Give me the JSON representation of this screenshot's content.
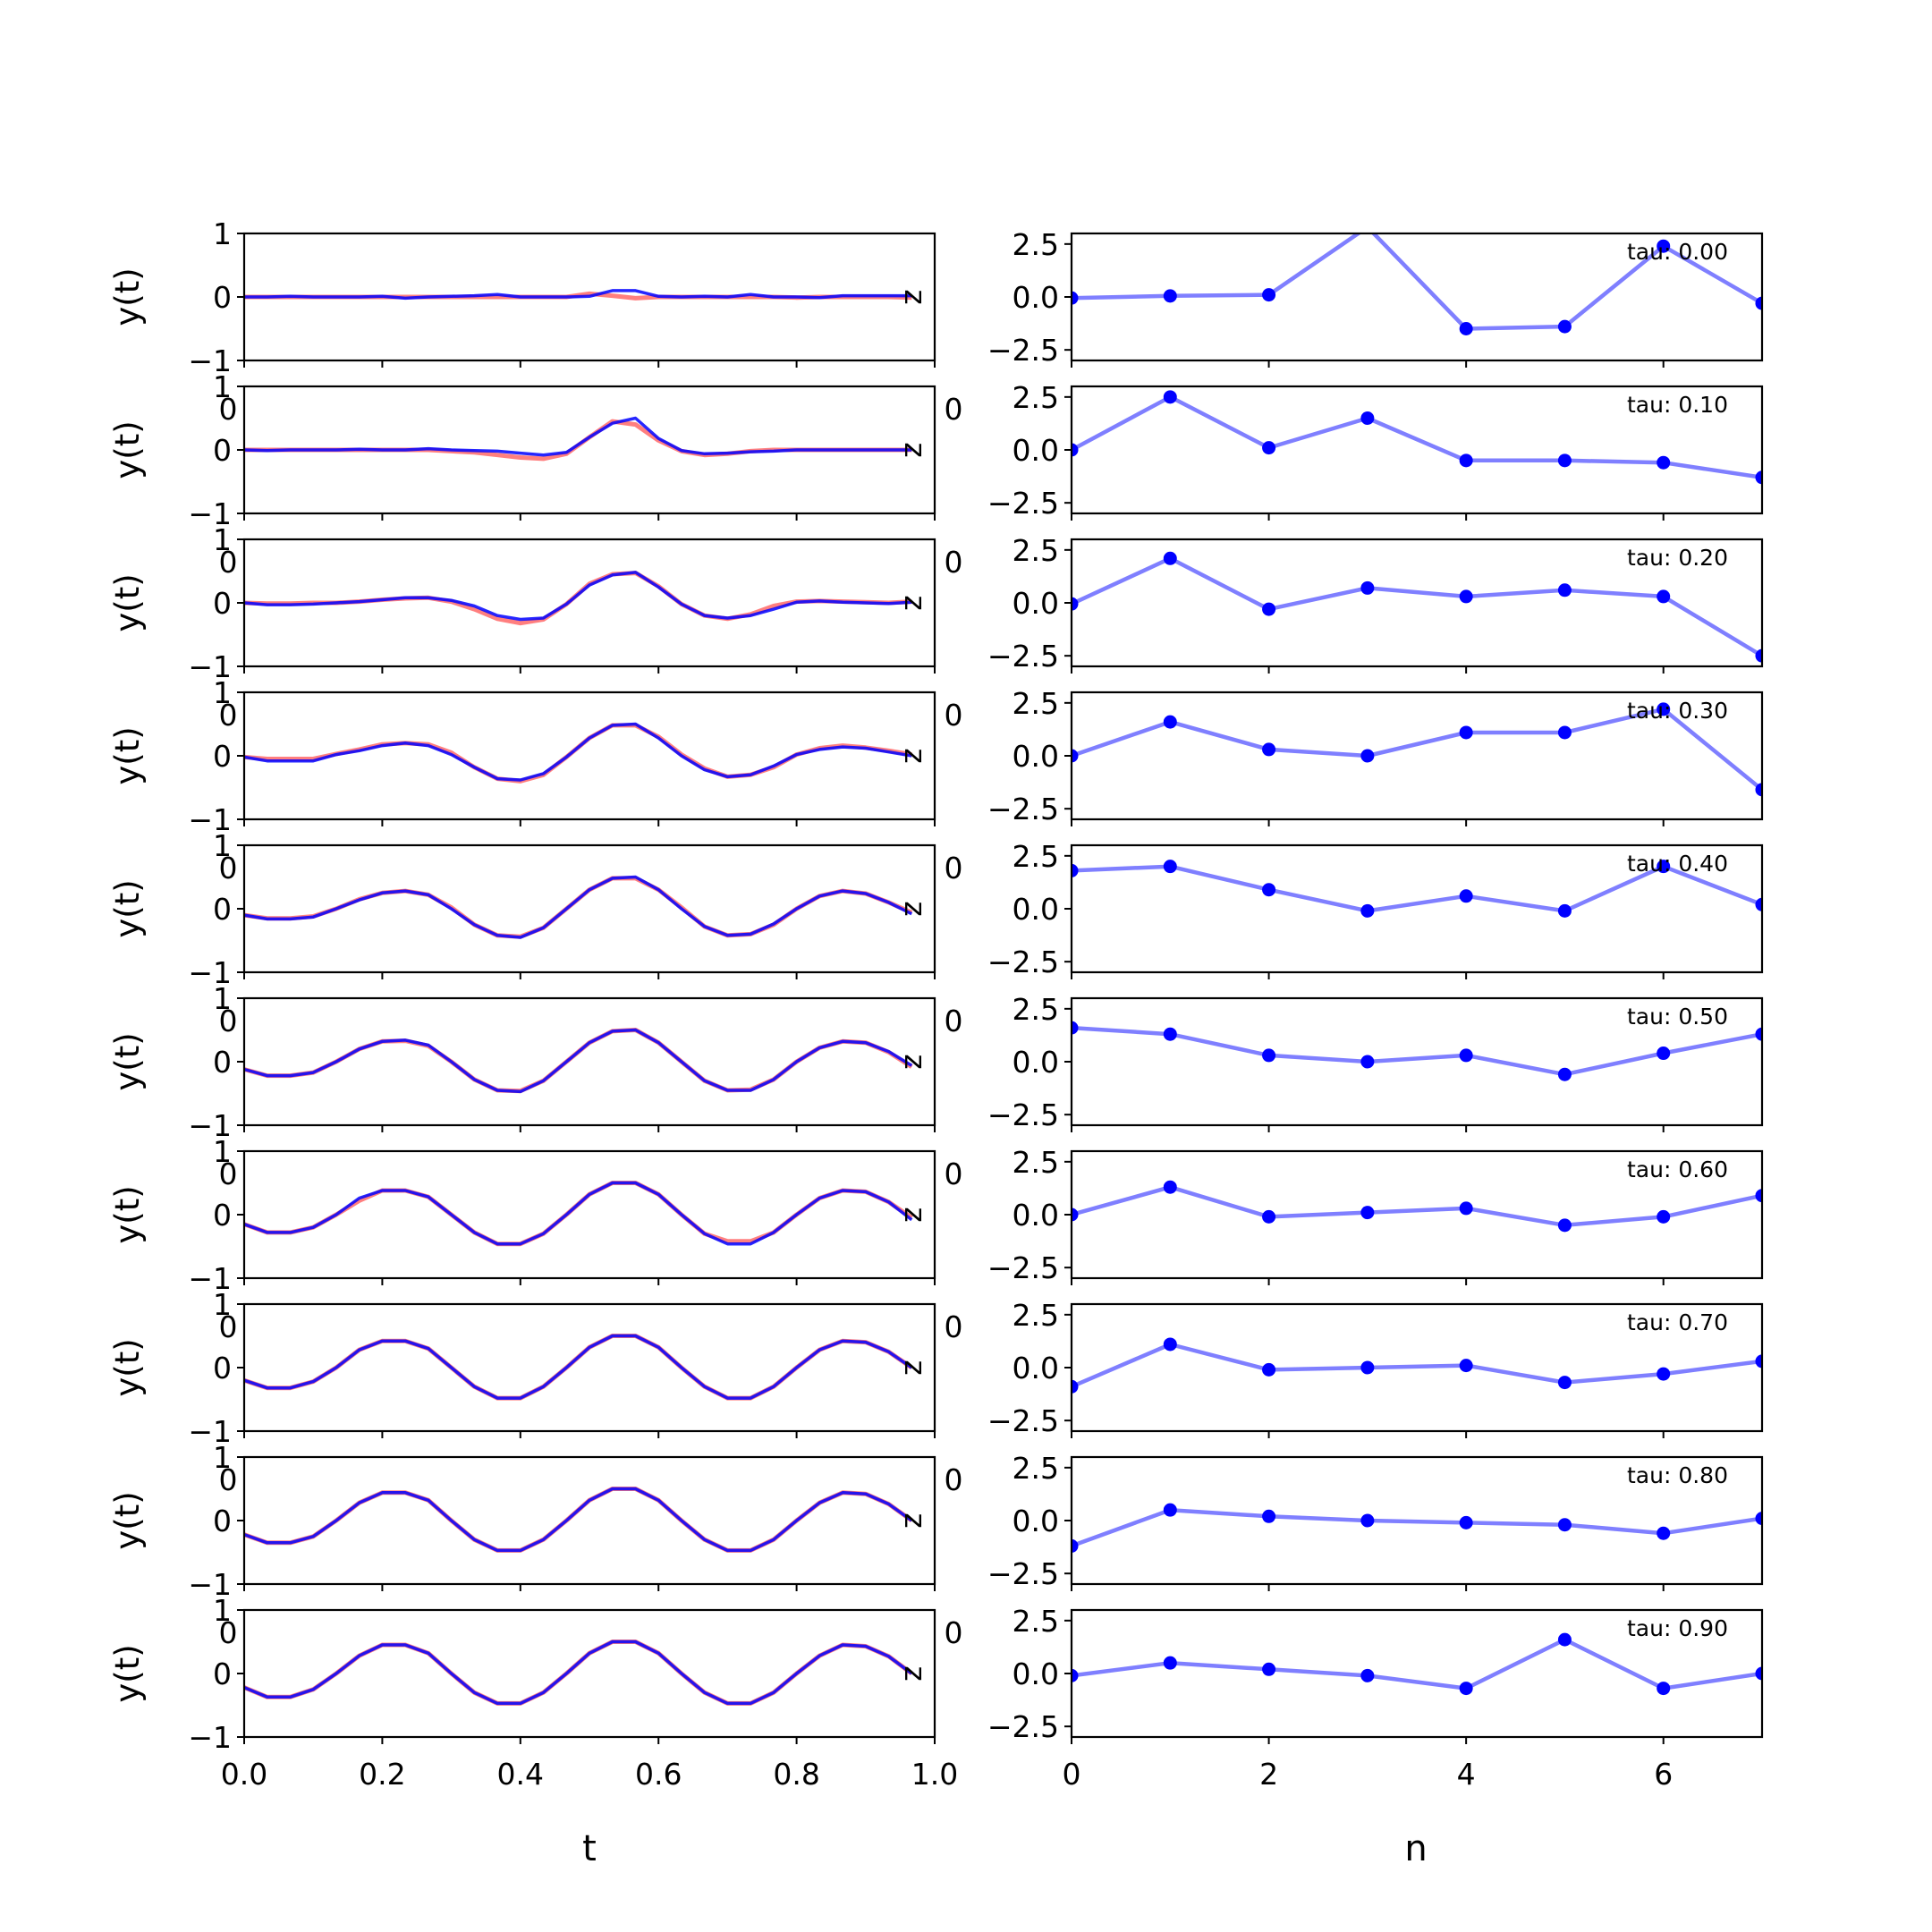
{
  "figure": {
    "left_xlabel": "t",
    "right_xlabel": "n",
    "left_ylabel": "y(t)"
  },
  "colors": {
    "reference_line": "#ff0000",
    "reconstruction_line": "#0000ff",
    "coefficient_line": "#0000ff",
    "coefficient_marker": "#0000ff",
    "axes": "#000000"
  },
  "chart_data": [
    {
      "type": "line",
      "panel": "left",
      "description_source": "stacked y(t) panels",
      "x": [
        0.0,
        0.0333,
        0.0667,
        0.1,
        0.1333,
        0.1667,
        0.2,
        0.2333,
        0.2667,
        0.3,
        0.3333,
        0.3667,
        0.4,
        0.4333,
        0.4667,
        0.5,
        0.5333,
        0.5667,
        0.6,
        0.6333,
        0.6667,
        0.7,
        0.7333,
        0.7667,
        0.8,
        0.8333,
        0.8667,
        0.9,
        0.9333,
        0.9667
      ],
      "xlim": [
        0.0,
        1.0
      ],
      "ylim": [
        -1,
        1
      ],
      "xticks": [
        "0.0",
        "0.2",
        "0.4",
        "0.6",
        "0.8",
        "1.0"
      ],
      "yticks": [
        "1",
        "0",
        "−1"
      ],
      "xlabel": "t",
      "ylabel": "y(t)",
      "stray_labels": [
        "0",
        "z"
      ],
      "panels": [
        {
          "tau": "0.00",
          "red": [
            0.0,
            0.0,
            0.0,
            0.0,
            0.0,
            0.0,
            0.0,
            0.0,
            0.0,
            0.0,
            0.0,
            0.0,
            0.0,
            0.0,
            0.0,
            0.05,
            0.02,
            -0.02,
            0.0,
            0.0,
            0.0,
            0.0,
            0.0,
            0.0,
            -0.01,
            0.0,
            0.0,
            0.0,
            0.0,
            -0.01
          ],
          "blue": [
            0.0,
            0.0,
            0.01,
            0.0,
            0.0,
            0.0,
            0.01,
            -0.02,
            0.0,
            0.01,
            0.02,
            0.04,
            0.0,
            0.0,
            0.0,
            0.01,
            0.1,
            0.1,
            0.01,
            0.0,
            0.01,
            0.0,
            0.04,
            0.0,
            0.0,
            -0.01,
            0.02,
            0.02,
            0.02,
            0.02
          ]
        },
        {
          "tau": "0.10",
          "red": [
            0.0,
            0.0,
            0.0,
            0.0,
            0.0,
            0.0,
            0.0,
            0.0,
            0.0,
            -0.02,
            -0.04,
            -0.08,
            -0.12,
            -0.14,
            -0.06,
            0.2,
            0.45,
            0.4,
            0.15,
            -0.02,
            -0.08,
            -0.06,
            -0.02,
            0.0,
            0.0,
            0.0,
            0.0,
            0.0,
            0.0,
            0.0
          ],
          "blue": [
            0.0,
            -0.01,
            0.0,
            0.0,
            0.0,
            0.01,
            0.0,
            0.0,
            0.02,
            0.0,
            -0.01,
            -0.02,
            -0.05,
            -0.08,
            -0.04,
            0.2,
            0.42,
            0.5,
            0.18,
            -0.01,
            -0.06,
            -0.05,
            -0.03,
            -0.02,
            0.0,
            0.0,
            0.0,
            0.0,
            0.0,
            0.0
          ]
        },
        {
          "tau": "0.20",
          "red": [
            0.0,
            -0.01,
            -0.01,
            0.0,
            0.0,
            0.02,
            0.05,
            0.07,
            0.08,
            0.02,
            -0.1,
            -0.25,
            -0.32,
            -0.26,
            -0.02,
            0.3,
            0.45,
            0.47,
            0.26,
            -0.02,
            -0.2,
            -0.25,
            -0.18,
            -0.05,
            0.02,
            0.03,
            0.02,
            0.01,
            0.0,
            0.02
          ],
          "blue": [
            0.0,
            -0.03,
            -0.03,
            -0.02,
            0.0,
            0.02,
            0.05,
            0.08,
            0.08,
            0.04,
            -0.05,
            -0.2,
            -0.26,
            -0.24,
            -0.02,
            0.28,
            0.44,
            0.48,
            0.25,
            -0.02,
            -0.2,
            -0.24,
            -0.2,
            -0.1,
            0.01,
            0.03,
            0.01,
            0.0,
            -0.01,
            0.01
          ]
        },
        {
          "tau": "0.30",
          "red": [
            -0.02,
            -0.05,
            -0.05,
            -0.05,
            0.03,
            0.1,
            0.18,
            0.2,
            0.18,
            0.05,
            -0.18,
            -0.36,
            -0.4,
            -0.3,
            -0.02,
            0.28,
            0.48,
            0.48,
            0.3,
            0.02,
            -0.2,
            -0.33,
            -0.3,
            -0.18,
            0.02,
            0.12,
            0.16,
            0.13,
            0.08,
            0.02
          ],
          "blue": [
            -0.02,
            -0.08,
            -0.08,
            -0.08,
            0.02,
            0.08,
            0.16,
            0.2,
            0.16,
            0.02,
            -0.18,
            -0.36,
            -0.38,
            -0.28,
            -0.02,
            0.28,
            0.48,
            0.5,
            0.28,
            0.0,
            -0.22,
            -0.33,
            -0.3,
            -0.16,
            0.02,
            0.1,
            0.14,
            0.12,
            0.06,
            0.0
          ]
        },
        {
          "tau": "0.40",
          "red": [
            -0.1,
            -0.15,
            -0.15,
            -0.12,
            0.0,
            0.15,
            0.25,
            0.28,
            0.22,
            0.02,
            -0.25,
            -0.42,
            -0.44,
            -0.3,
            0.0,
            0.3,
            0.48,
            0.48,
            0.3,
            0.02,
            -0.28,
            -0.42,
            -0.4,
            -0.25,
            0.0,
            0.2,
            0.28,
            0.24,
            0.1,
            -0.06
          ],
          "blue": [
            -0.1,
            -0.16,
            -0.16,
            -0.13,
            0.0,
            0.14,
            0.25,
            0.28,
            0.22,
            0.0,
            -0.25,
            -0.42,
            -0.45,
            -0.3,
            0.0,
            0.3,
            0.48,
            0.5,
            0.3,
            0.0,
            -0.28,
            -0.42,
            -0.4,
            -0.24,
            0.0,
            0.2,
            0.28,
            0.24,
            0.1,
            -0.08
          ]
        },
        {
          "tau": "0.50",
          "red": [
            -0.12,
            -0.22,
            -0.22,
            -0.17,
            0.0,
            0.2,
            0.32,
            0.33,
            0.25,
            0.0,
            -0.28,
            -0.45,
            -0.46,
            -0.3,
            0.0,
            0.3,
            0.48,
            0.5,
            0.3,
            0.0,
            -0.3,
            -0.45,
            -0.44,
            -0.28,
            0.0,
            0.22,
            0.32,
            0.3,
            0.15,
            -0.08
          ],
          "blue": [
            -0.12,
            -0.22,
            -0.22,
            -0.17,
            0.0,
            0.2,
            0.32,
            0.34,
            0.26,
            0.0,
            -0.28,
            -0.45,
            -0.47,
            -0.3,
            0.0,
            0.3,
            0.48,
            0.5,
            0.3,
            0.0,
            -0.3,
            -0.45,
            -0.45,
            -0.28,
            0.0,
            0.22,
            0.32,
            0.3,
            0.16,
            -0.06
          ]
        },
        {
          "tau": "0.60",
          "red": [
            -0.15,
            -0.28,
            -0.28,
            -0.2,
            0.0,
            0.22,
            0.38,
            0.38,
            0.28,
            0.0,
            -0.28,
            -0.46,
            -0.46,
            -0.3,
            0.0,
            0.32,
            0.5,
            0.5,
            0.32,
            0.0,
            -0.3,
            -0.42,
            -0.42,
            -0.28,
            0.0,
            0.26,
            0.38,
            0.36,
            0.2,
            -0.05
          ],
          "blue": [
            -0.15,
            -0.28,
            -0.28,
            -0.2,
            0.0,
            0.26,
            0.38,
            0.38,
            0.28,
            0.0,
            -0.28,
            -0.46,
            -0.46,
            -0.3,
            0.0,
            0.32,
            0.5,
            0.5,
            0.32,
            0.0,
            -0.3,
            -0.46,
            -0.46,
            -0.28,
            0.0,
            0.26,
            0.38,
            0.36,
            0.2,
            -0.08
          ]
        },
        {
          "tau": "0.70",
          "red": [
            -0.2,
            -0.32,
            -0.32,
            -0.22,
            0.0,
            0.28,
            0.42,
            0.42,
            0.3,
            0.0,
            -0.3,
            -0.48,
            -0.48,
            -0.3,
            0.0,
            0.32,
            0.5,
            0.5,
            0.32,
            0.0,
            -0.3,
            -0.48,
            -0.48,
            -0.3,
            0.0,
            0.28,
            0.42,
            0.4,
            0.25,
            0.0
          ],
          "blue": [
            -0.2,
            -0.32,
            -0.32,
            -0.22,
            0.0,
            0.28,
            0.42,
            0.42,
            0.3,
            0.0,
            -0.3,
            -0.48,
            -0.48,
            -0.3,
            0.0,
            0.32,
            0.5,
            0.5,
            0.32,
            0.0,
            -0.3,
            -0.48,
            -0.48,
            -0.3,
            0.0,
            0.28,
            0.42,
            0.4,
            0.25,
            0.0
          ]
        },
        {
          "tau": "0.80",
          "red": [
            -0.22,
            -0.35,
            -0.35,
            -0.25,
            0.0,
            0.28,
            0.44,
            0.44,
            0.32,
            0.0,
            -0.3,
            -0.47,
            -0.47,
            -0.3,
            0.0,
            0.32,
            0.5,
            0.5,
            0.32,
            0.0,
            -0.3,
            -0.47,
            -0.47,
            -0.3,
            0.0,
            0.28,
            0.44,
            0.42,
            0.26,
            0.0
          ],
          "blue": [
            -0.22,
            -0.35,
            -0.35,
            -0.25,
            0.0,
            0.28,
            0.44,
            0.44,
            0.32,
            0.0,
            -0.3,
            -0.47,
            -0.47,
            -0.3,
            0.0,
            0.32,
            0.5,
            0.5,
            0.32,
            0.0,
            -0.3,
            -0.47,
            -0.47,
            -0.3,
            0.0,
            0.28,
            0.44,
            0.42,
            0.26,
            0.0
          ]
        },
        {
          "tau": "0.90",
          "red": [
            -0.22,
            -0.37,
            -0.37,
            -0.25,
            0.0,
            0.28,
            0.45,
            0.45,
            0.32,
            0.0,
            -0.3,
            -0.47,
            -0.47,
            -0.3,
            0.0,
            0.32,
            0.5,
            0.5,
            0.32,
            0.0,
            -0.3,
            -0.47,
            -0.47,
            -0.3,
            0.0,
            0.28,
            0.45,
            0.43,
            0.27,
            0.0
          ],
          "blue": [
            -0.22,
            -0.37,
            -0.37,
            -0.25,
            0.0,
            0.28,
            0.45,
            0.45,
            0.32,
            0.0,
            -0.3,
            -0.47,
            -0.47,
            -0.3,
            0.0,
            0.32,
            0.5,
            0.5,
            0.32,
            0.0,
            -0.3,
            -0.47,
            -0.47,
            -0.3,
            0.0,
            0.28,
            0.45,
            0.43,
            0.27,
            0.0
          ]
        }
      ]
    },
    {
      "type": "line",
      "panel": "right",
      "x": [
        0,
        1,
        2,
        3,
        4,
        5,
        6,
        7
      ],
      "xlim": [
        0,
        7
      ],
      "ylim": [
        -3.0,
        3.0
      ],
      "xticks": [
        "0",
        "2",
        "4",
        "6"
      ],
      "yticks": [
        "2.5",
        "0.0",
        "−2.5"
      ],
      "xlabel": "n",
      "stray_labels": [
        "0",
        "0",
        "0"
      ],
      "panels": [
        {
          "label": "tau: 0.00",
          "values": [
            -0.05,
            0.05,
            0.1,
            3.3,
            -1.5,
            -1.4,
            2.4,
            -0.3
          ]
        },
        {
          "label": "tau: 0.10",
          "values": [
            0.0,
            2.5,
            0.1,
            1.5,
            -0.5,
            -0.5,
            -0.6,
            -1.3
          ]
        },
        {
          "label": "tau: 0.20",
          "values": [
            -0.05,
            2.1,
            -0.3,
            0.7,
            0.3,
            0.6,
            0.3,
            -2.5
          ]
        },
        {
          "label": "tau: 0.30",
          "values": [
            0.0,
            1.6,
            0.3,
            0.0,
            1.1,
            1.1,
            2.2,
            -1.6
          ]
        },
        {
          "label": "tau: 0.40",
          "values": [
            1.8,
            2.0,
            0.9,
            -0.1,
            0.6,
            -0.1,
            2.0,
            0.2
          ]
        },
        {
          "label": "tau: 0.50",
          "values": [
            1.6,
            1.3,
            0.3,
            0.0,
            0.3,
            -0.6,
            0.4,
            1.3
          ]
        },
        {
          "label": "tau: 0.60",
          "values": [
            0.0,
            1.3,
            -0.1,
            0.1,
            0.3,
            -0.5,
            -0.1,
            0.9
          ]
        },
        {
          "label": "tau: 0.70",
          "values": [
            -0.9,
            1.1,
            -0.1,
            0.0,
            0.1,
            -0.7,
            -0.3,
            0.3
          ]
        },
        {
          "label": "tau: 0.80",
          "values": [
            -1.2,
            0.5,
            0.2,
            0.0,
            -0.1,
            -0.2,
            -0.6,
            0.1
          ]
        },
        {
          "label": "tau: 0.90",
          "values": [
            -0.1,
            0.5,
            0.2,
            -0.1,
            -0.7,
            1.6,
            -0.7,
            0.0
          ]
        }
      ]
    }
  ]
}
